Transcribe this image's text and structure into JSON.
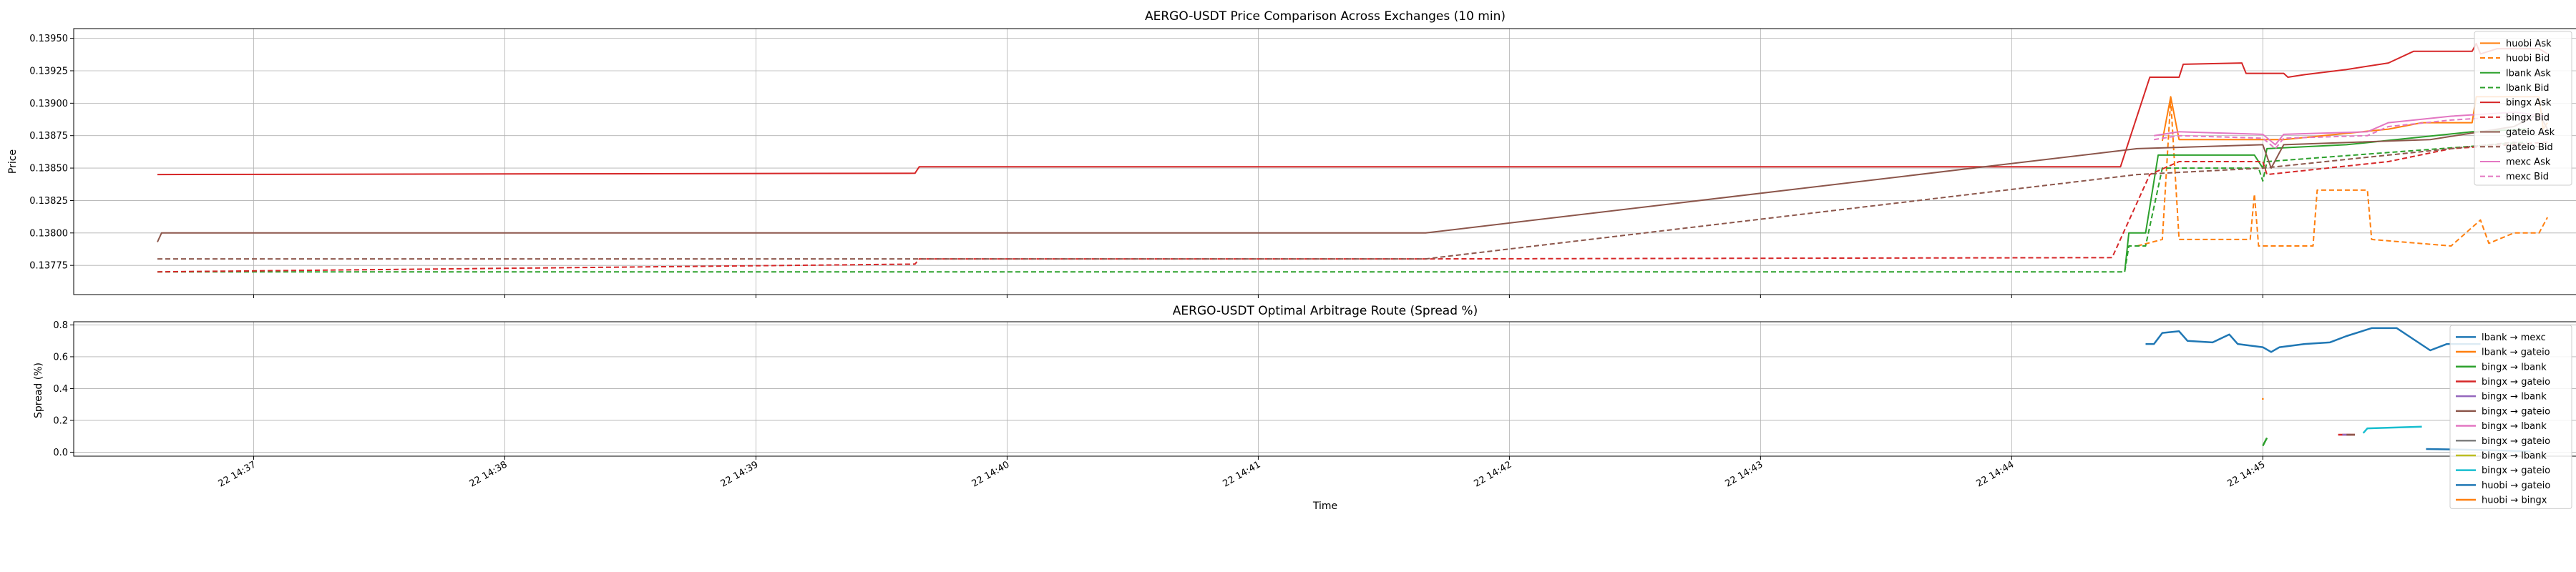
{
  "chart_data": [
    {
      "type": "line",
      "title": "AERGO-USDT Price Comparison Across Exchanges (10 min)",
      "xlabel": "",
      "ylabel": "Price",
      "xlim": [
        "2024-01-22 14:36:17",
        "2024-01-22 14:46:15"
      ],
      "ylim": [
        0.137525,
        0.139575
      ],
      "y_ticks": [
        0.13775,
        0.138,
        0.13825,
        0.1385,
        0.13875,
        0.139,
        0.13925,
        0.1395
      ],
      "y_tick_labels": [
        "0.13775",
        "0.13800",
        "0.13825",
        "0.13850",
        "0.13875",
        "0.13900",
        "0.13925",
        "0.13950"
      ],
      "grid": true,
      "legend_position": "top-right",
      "series": [
        {
          "name": "huobi Ask",
          "color": "#ff7f0e",
          "dash": "solid",
          "points": [
            [
              "2024-01-22 14:44:36",
              0.13871
            ],
            [
              "2024-01-22 14:44:38",
              0.13905
            ],
            [
              "2024-01-22 14:44:40",
              0.13872
            ],
            [
              "2024-01-22 14:45:05",
              0.13872
            ],
            [
              "2024-01-22 14:45:30",
              0.1388
            ],
            [
              "2024-01-22 14:45:38",
              0.13885
            ],
            [
              "2024-01-22 14:45:50",
              0.13885
            ],
            [
              "2024-01-22 14:45:51",
              0.13905
            ],
            [
              "2024-01-22 14:46:06",
              0.13905
            ],
            [
              "2024-01-22 14:46:07",
              0.1388
            ],
            [
              "2024-01-22 14:46:08",
              0.13885
            ]
          ]
        },
        {
          "name": "huobi Bid",
          "color": "#ff7f0e",
          "dash": "dashed",
          "points": [
            [
              "2024-01-22 14:44:30",
              0.1379
            ],
            [
              "2024-01-22 14:44:36",
              0.13795
            ],
            [
              "2024-01-22 14:44:38",
              0.13903
            ],
            [
              "2024-01-22 14:44:40",
              0.13795
            ],
            [
              "2024-01-22 14:44:57",
              0.13795
            ],
            [
              "2024-01-22 14:44:58",
              0.1383
            ],
            [
              "2024-01-22 14:44:59",
              0.1379
            ],
            [
              "2024-01-22 14:45:12",
              0.1379
            ],
            [
              "2024-01-22 14:45:13",
              0.13833
            ],
            [
              "2024-01-22 14:45:25",
              0.13833
            ],
            [
              "2024-01-22 14:45:26",
              0.13795
            ],
            [
              "2024-01-22 14:45:45",
              0.1379
            ],
            [
              "2024-01-22 14:45:52",
              0.1381
            ],
            [
              "2024-01-22 14:45:54",
              0.13792
            ],
            [
              "2024-01-22 14:46:00",
              0.138
            ],
            [
              "2024-01-22 14:46:06",
              0.138
            ],
            [
              "2024-01-22 14:46:08",
              0.13812
            ]
          ]
        },
        {
          "name": "lbank Ask",
          "color": "#2ca02c",
          "dash": "solid",
          "points": [
            [
              "2024-01-22 14:44:27",
              0.1377
            ],
            [
              "2024-01-22 14:44:28",
              0.138
            ],
            [
              "2024-01-22 14:44:32",
              0.138
            ],
            [
              "2024-01-22 14:44:35",
              0.1386
            ],
            [
              "2024-01-22 14:44:58",
              0.1386
            ],
            [
              "2024-01-22 14:45:00",
              0.1385
            ],
            [
              "2024-01-22 14:45:01",
              0.13865
            ],
            [
              "2024-01-22 14:45:20",
              0.13868
            ],
            [
              "2024-01-22 14:45:50",
              0.13878
            ],
            [
              "2024-01-22 14:46:03",
              0.1388
            ]
          ]
        },
        {
          "name": "lbank Bid",
          "color": "#2ca02c",
          "dash": "dashed",
          "points": [
            [
              "2024-01-22 14:36:37",
              0.1377
            ],
            [
              "2024-01-22 14:44:27",
              0.1377
            ],
            [
              "2024-01-22 14:44:28",
              0.1379
            ],
            [
              "2024-01-22 14:44:32",
              0.1379
            ],
            [
              "2024-01-22 14:44:36",
              0.1385
            ],
            [
              "2024-01-22 14:44:59",
              0.1385
            ],
            [
              "2024-01-22 14:45:00",
              0.1384
            ],
            [
              "2024-01-22 14:45:01",
              0.13855
            ],
            [
              "2024-01-22 14:45:30",
              0.13862
            ],
            [
              "2024-01-22 14:45:55",
              0.13868
            ],
            [
              "2024-01-22 14:46:03",
              0.1387
            ]
          ]
        },
        {
          "name": "bingx Ask",
          "color": "#d62728",
          "dash": "solid",
          "points": [
            [
              "2024-01-22 14:36:37",
              0.13845
            ],
            [
              "2024-01-22 14:39:38",
              0.13846
            ],
            [
              "2024-01-22 14:39:39",
              0.13851
            ],
            [
              "2024-01-22 14:44:26",
              0.13851
            ],
            [
              "2024-01-22 14:44:33",
              0.1392
            ],
            [
              "2024-01-22 14:44:40",
              0.1392
            ],
            [
              "2024-01-22 14:44:41",
              0.1393
            ],
            [
              "2024-01-22 14:44:55",
              0.13931
            ],
            [
              "2024-01-22 14:44:56",
              0.13923
            ],
            [
              "2024-01-22 14:45:05",
              0.13923
            ],
            [
              "2024-01-22 14:45:06",
              0.1392
            ],
            [
              "2024-01-22 14:45:10",
              0.13922
            ],
            [
              "2024-01-22 14:45:20",
              0.13926
            ],
            [
              "2024-01-22 14:45:30",
              0.13931
            ],
            [
              "2024-01-22 14:45:36",
              0.1394
            ],
            [
              "2024-01-22 14:45:50",
              0.1394
            ],
            [
              "2024-01-22 14:45:51",
              0.13946
            ],
            [
              "2024-01-22 14:45:52",
              0.13938
            ],
            [
              "2024-01-22 14:45:56",
              0.13942
            ],
            [
              "2024-01-22 14:46:06",
              0.13942
            ],
            [
              "2024-01-22 14:46:08",
              0.13938
            ]
          ]
        },
        {
          "name": "bingx Bid",
          "color": "#d62728",
          "dash": "dashed",
          "points": [
            [
              "2024-01-22 14:36:37",
              0.1377
            ],
            [
              "2024-01-22 14:39:38",
              0.13776
            ],
            [
              "2024-01-22 14:39:39",
              0.1378
            ],
            [
              "2024-01-22 14:41:40",
              0.1378
            ],
            [
              "2024-01-22 14:44:24",
              0.13781
            ],
            [
              "2024-01-22 14:44:33",
              0.13845
            ],
            [
              "2024-01-22 14:44:40",
              0.13855
            ],
            [
              "2024-01-22 14:45:00",
              0.13855
            ],
            [
              "2024-01-22 14:45:01",
              0.13845
            ],
            [
              "2024-01-22 14:45:30",
              0.13855
            ],
            [
              "2024-01-22 14:45:45",
              0.13865
            ],
            [
              "2024-01-22 14:46:08",
              0.1387
            ]
          ]
        },
        {
          "name": "gateio Ask",
          "color": "#8c564b",
          "dash": "solid",
          "points": [
            [
              "2024-01-22 14:36:37",
              0.13793
            ],
            [
              "2024-01-22 14:36:38",
              0.138
            ],
            [
              "2024-01-22 14:41:40",
              0.138
            ],
            [
              "2024-01-22 14:44:30",
              0.13865
            ],
            [
              "2024-01-22 14:45:00",
              0.13868
            ],
            [
              "2024-01-22 14:45:02",
              0.1385
            ],
            [
              "2024-01-22 14:45:05",
              0.13868
            ],
            [
              "2024-01-22 14:45:40",
              0.13872
            ],
            [
              "2024-01-22 14:46:00",
              0.13882
            ],
            [
              "2024-01-22 14:46:06",
              0.13892
            ],
            [
              "2024-01-22 14:46:08",
              0.1388
            ]
          ]
        },
        {
          "name": "gateio Bid",
          "color": "#8c564b",
          "dash": "dashed",
          "points": [
            [
              "2024-01-22 14:36:37",
              0.1378
            ],
            [
              "2024-01-22 14:41:40",
              0.1378
            ],
            [
              "2024-01-22 14:44:30",
              0.13845
            ],
            [
              "2024-01-22 14:45:00",
              0.1385
            ],
            [
              "2024-01-22 14:45:30",
              0.1386
            ],
            [
              "2024-01-22 14:46:00",
              0.1387
            ],
            [
              "2024-01-22 14:46:08",
              0.13865
            ]
          ]
        },
        {
          "name": "mexc Ask",
          "color": "#e377c2",
          "dash": "solid",
          "points": [
            [
              "2024-01-22 14:44:34",
              0.13875
            ],
            [
              "2024-01-22 14:44:40",
              0.13878
            ],
            [
              "2024-01-22 14:45:00",
              0.13876
            ],
            [
              "2024-01-22 14:45:03",
              0.13868
            ],
            [
              "2024-01-22 14:45:05",
              0.13876
            ],
            [
              "2024-01-22 14:45:25",
              0.13878
            ],
            [
              "2024-01-22 14:45:30",
              0.13885
            ],
            [
              "2024-01-22 14:45:45",
              0.1389
            ],
            [
              "2024-01-22 14:46:00",
              0.13893
            ],
            [
              "2024-01-22 14:46:08",
              0.1389
            ]
          ]
        },
        {
          "name": "mexc Bid",
          "color": "#e377c2",
          "dash": "dashed",
          "points": [
            [
              "2024-01-22 14:44:34",
              0.13872
            ],
            [
              "2024-01-22 14:44:40",
              0.13875
            ],
            [
              "2024-01-22 14:45:00",
              0.13873
            ],
            [
              "2024-01-22 14:45:03",
              0.13865
            ],
            [
              "2024-01-22 14:45:05",
              0.13873
            ],
            [
              "2024-01-22 14:45:25",
              0.13875
            ],
            [
              "2024-01-22 14:45:30",
              0.13882
            ],
            [
              "2024-01-22 14:45:45",
              0.13887
            ],
            [
              "2024-01-22 14:46:00",
              0.1389
            ],
            [
              "2024-01-22 14:46:08",
              0.13887
            ]
          ]
        }
      ]
    },
    {
      "type": "line",
      "title": "AERGO-USDT Optimal Arbitrage Route (Spread %)",
      "xlabel": "Time",
      "ylabel": "Spread (%)",
      "xlim": [
        "2024-01-22 14:36:17",
        "2024-01-22 14:46:15"
      ],
      "ylim": [
        -0.025,
        0.82
      ],
      "y_ticks": [
        0.0,
        0.2,
        0.4,
        0.6,
        0.8
      ],
      "y_tick_labels": [
        "0.0",
        "0.2",
        "0.4",
        "0.6",
        "0.8"
      ],
      "x_ticks": [
        "2024-01-22 14:37:00",
        "2024-01-22 14:38:00",
        "2024-01-22 14:39:00",
        "2024-01-22 14:40:00",
        "2024-01-22 14:41:00",
        "2024-01-22 14:42:00",
        "2024-01-22 14:43:00",
        "2024-01-22 14:44:00",
        "2024-01-22 14:45:00"
      ],
      "x_tick_labels": [
        "22 14:37",
        "22 14:38",
        "22 14:39",
        "22 14:40",
        "22 14:41",
        "22 14:42",
        "22 14:43",
        "22 14:44",
        "22 14:45"
      ],
      "grid": true,
      "legend_position": "right",
      "series": [
        {
          "name": "lbank → mexc",
          "color": "#1f77b4",
          "points": [
            [
              "2024-01-22 14:44:32",
              0.68
            ],
            [
              "2024-01-22 14:44:34",
              0.68
            ],
            [
              "2024-01-22 14:44:36",
              0.75
            ],
            [
              "2024-01-22 14:44:40",
              0.76
            ],
            [
              "2024-01-22 14:44:42",
              0.7
            ],
            [
              "2024-01-22 14:44:48",
              0.69
            ],
            [
              "2024-01-22 14:44:52",
              0.74
            ],
            [
              "2024-01-22 14:44:54",
              0.68
            ],
            [
              "2024-01-22 14:45:00",
              0.66
            ],
            [
              "2024-01-22 14:45:02",
              0.63
            ],
            [
              "2024-01-22 14:45:04",
              0.66
            ],
            [
              "2024-01-22 14:45:10",
              0.68
            ],
            [
              "2024-01-22 14:45:16",
              0.69
            ],
            [
              "2024-01-22 14:45:20",
              0.73
            ],
            [
              "2024-01-22 14:45:26",
              0.78
            ],
            [
              "2024-01-22 14:45:32",
              0.78
            ],
            [
              "2024-01-22 14:45:36",
              0.71
            ],
            [
              "2024-01-22 14:45:40",
              0.64
            ],
            [
              "2024-01-22 14:45:44",
              0.68
            ],
            [
              "2024-01-22 14:45:52",
              0.68
            ]
          ]
        },
        {
          "name": "lbank → gateio",
          "color": "#ff7f0e",
          "points": [
            [
              "2024-01-22 14:45:00",
              0.34
            ],
            [
              "2024-01-22 14:45:00",
              0.33
            ]
          ]
        },
        {
          "name": "bingx → lbank",
          "color": "#2ca02c",
          "points": [
            [
              "2024-01-22 14:45:00",
              0.04
            ],
            [
              "2024-01-22 14:45:01",
              0.09
            ]
          ]
        },
        {
          "name": "bingx → gateio",
          "color": "#d62728",
          "points": [
            [
              "2024-01-22 14:45:18",
              0.11
            ],
            [
              "2024-01-22 14:45:22",
              0.11
            ]
          ]
        },
        {
          "name": "bingx → lbank",
          "color": "#9467bd",
          "points": [
            [
              "2024-01-22 14:45:19",
              0.11
            ],
            [
              "2024-01-22 14:45:21",
              0.11
            ]
          ]
        },
        {
          "name": "bingx → gateio",
          "color": "#8c564b",
          "points": [
            [
              "2024-01-22 14:45:20",
              0.11
            ],
            [
              "2024-01-22 14:45:22",
              0.11
            ]
          ]
        },
        {
          "name": "bingx → lbank",
          "color": "#e377c2",
          "points": []
        },
        {
          "name": "bingx → gateio",
          "color": "#7f7f7f",
          "points": []
        },
        {
          "name": "bingx → lbank",
          "color": "#bcbd22",
          "points": []
        },
        {
          "name": "bingx → gateio",
          "color": "#17becf",
          "points": [
            [
              "2024-01-22 14:45:24",
              0.12
            ],
            [
              "2024-01-22 14:45:25",
              0.15
            ],
            [
              "2024-01-22 14:45:38",
              0.16
            ]
          ]
        },
        {
          "name": "huobi → gateio",
          "color": "#1f77b4",
          "points": [
            [
              "2024-01-22 14:45:39",
              0.02
            ],
            [
              "2024-01-22 14:45:50",
              0.015
            ],
            [
              "2024-01-22 14:46:04",
              0.005
            ]
          ]
        },
        {
          "name": "huobi → bingx",
          "color": "#ff7f0e",
          "points": []
        }
      ]
    }
  ]
}
